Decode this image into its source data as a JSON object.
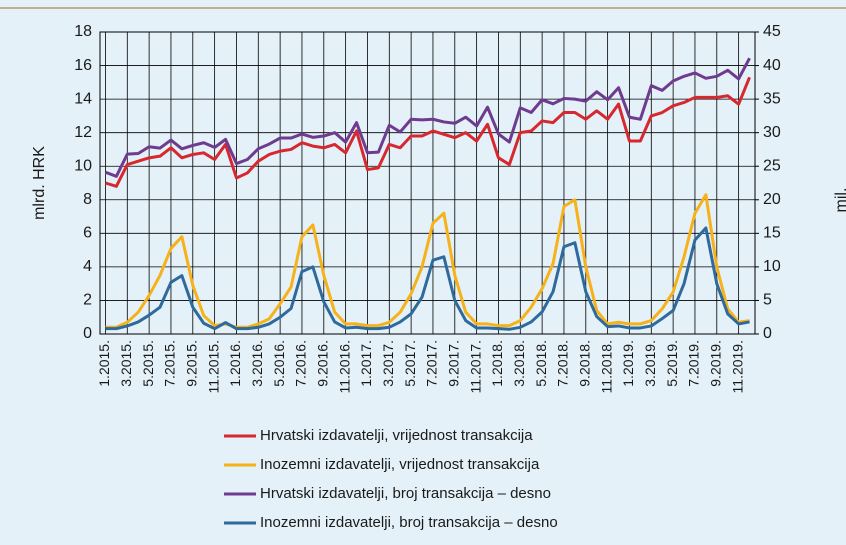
{
  "chart_data": {
    "type": "line",
    "ylabel": "mlrd. HRK",
    "y2label": "mil.",
    "categories": [
      "1.2015.",
      null,
      "3.2015.",
      null,
      "5.2015.",
      null,
      "7.2015.",
      null,
      "9.2015.",
      null,
      "11.2015.",
      null,
      "1.2016.",
      null,
      "3.2016.",
      null,
      "5.2016.",
      null,
      "7.2016.",
      null,
      "9.2016.",
      null,
      "11.2016.",
      null,
      "1.2017.",
      null,
      "3.2017.",
      null,
      "5.2017.",
      null,
      "7.2017.",
      null,
      "9.2017.",
      null,
      "11.2017.",
      null,
      "1.2018.",
      null,
      "3.2018.",
      null,
      "5.2018.",
      null,
      "7.2018.",
      null,
      "9.2018.",
      null,
      "11.2018.",
      null,
      "1.2019.",
      null,
      "3.2019.",
      null,
      "5.2019.",
      null,
      "7.2019.",
      null,
      "9.2019.",
      null,
      "11.2019.",
      null
    ],
    "ylim": [
      0,
      18
    ],
    "yticks": [
      0,
      2,
      4,
      6,
      8,
      10,
      12,
      14,
      16,
      18
    ],
    "y2lim": [
      0,
      45
    ],
    "y2ticks": [
      0,
      5,
      10,
      15,
      20,
      25,
      30,
      35,
      40,
      45
    ],
    "grid": true,
    "series": [
      {
        "name": "Hrvatski izdavatelji, vrijednost transakcija",
        "color": "#d7282f",
        "values": [
          9.0,
          8.8,
          10.1,
          10.3,
          10.5,
          10.6,
          11.1,
          10.5,
          10.7,
          10.8,
          10.4,
          11.3,
          9.3,
          9.6,
          10.3,
          10.7,
          10.9,
          11.0,
          11.4,
          11.2,
          11.1,
          11.3,
          10.8,
          12.1,
          9.8,
          9.9,
          11.3,
          11.1,
          11.8,
          11.8,
          12.1,
          11.9,
          11.7,
          12.0,
          11.5,
          12.5,
          10.5,
          10.1,
          12.0,
          12.1,
          12.7,
          12.6,
          13.2,
          13.2,
          12.8,
          13.3,
          12.8,
          13.7,
          11.5,
          11.5,
          13.0,
          13.2,
          13.6,
          13.8,
          14.1,
          14.1,
          14.1,
          14.2,
          13.7,
          15.3
        ]
      },
      {
        "name": "Inozemni izdavatelji, vrijednost transakcija",
        "color": "#f5b21a",
        "values": [
          0.4,
          0.4,
          0.7,
          1.3,
          2.3,
          3.5,
          5.1,
          5.8,
          2.9,
          1.1,
          0.5,
          0.6,
          0.4,
          0.4,
          0.6,
          0.9,
          1.8,
          2.8,
          5.8,
          6.5,
          3.5,
          1.3,
          0.6,
          0.6,
          0.5,
          0.5,
          0.7,
          1.3,
          2.4,
          4.0,
          6.6,
          7.2,
          3.5,
          1.3,
          0.6,
          0.6,
          0.5,
          0.5,
          0.8,
          1.6,
          2.7,
          4.2,
          7.6,
          8.0,
          4.0,
          1.4,
          0.6,
          0.7,
          0.6,
          0.6,
          0.8,
          1.5,
          2.5,
          4.6,
          7.2,
          8.3,
          4.0,
          1.5,
          0.7,
          0.8
        ]
      },
      {
        "name": "Hrvatski izdavatelji, broj transakcija – desno",
        "color": "#6f3b8f",
        "axis": "y2",
        "values": [
          24.1,
          23.5,
          26.8,
          26.9,
          27.9,
          27.7,
          28.9,
          27.6,
          28.1,
          28.5,
          27.8,
          29.0,
          25.4,
          26.0,
          27.6,
          28.3,
          29.2,
          29.2,
          29.8,
          29.3,
          29.5,
          30.0,
          28.6,
          31.5,
          27.0,
          27.1,
          31.1,
          30.1,
          32.0,
          31.9,
          32.0,
          31.6,
          31.4,
          32.3,
          31.0,
          33.8,
          29.8,
          28.6,
          33.7,
          33.0,
          34.9,
          34.3,
          35.1,
          35.0,
          34.7,
          36.1,
          34.9,
          36.7,
          32.3,
          32.0,
          37.0,
          36.3,
          37.7,
          38.4,
          38.9,
          38.1,
          38.4,
          39.3,
          38.0,
          41.1
        ]
      },
      {
        "name": "Inozemni izdavatelji, broj transakcija – desno",
        "color": "#2e6a9c",
        "axis": "y2",
        "values": [
          0.8,
          0.8,
          1.2,
          1.8,
          2.8,
          4.0,
          7.7,
          8.7,
          4.0,
          1.6,
          0.8,
          1.7,
          0.8,
          0.8,
          1.0,
          1.5,
          2.5,
          3.8,
          9.3,
          10.0,
          4.8,
          1.8,
          0.9,
          1.0,
          0.8,
          0.8,
          1.0,
          1.8,
          3.0,
          5.5,
          11.0,
          11.5,
          5.0,
          2.0,
          0.9,
          0.9,
          0.8,
          0.7,
          1.0,
          1.8,
          3.3,
          6.3,
          13.0,
          13.6,
          6.3,
          2.6,
          1.1,
          1.2,
          0.9,
          0.9,
          1.2,
          2.3,
          3.5,
          7.5,
          14.0,
          15.8,
          7.5,
          3.0,
          1.5,
          1.8
        ]
      }
    ]
  }
}
